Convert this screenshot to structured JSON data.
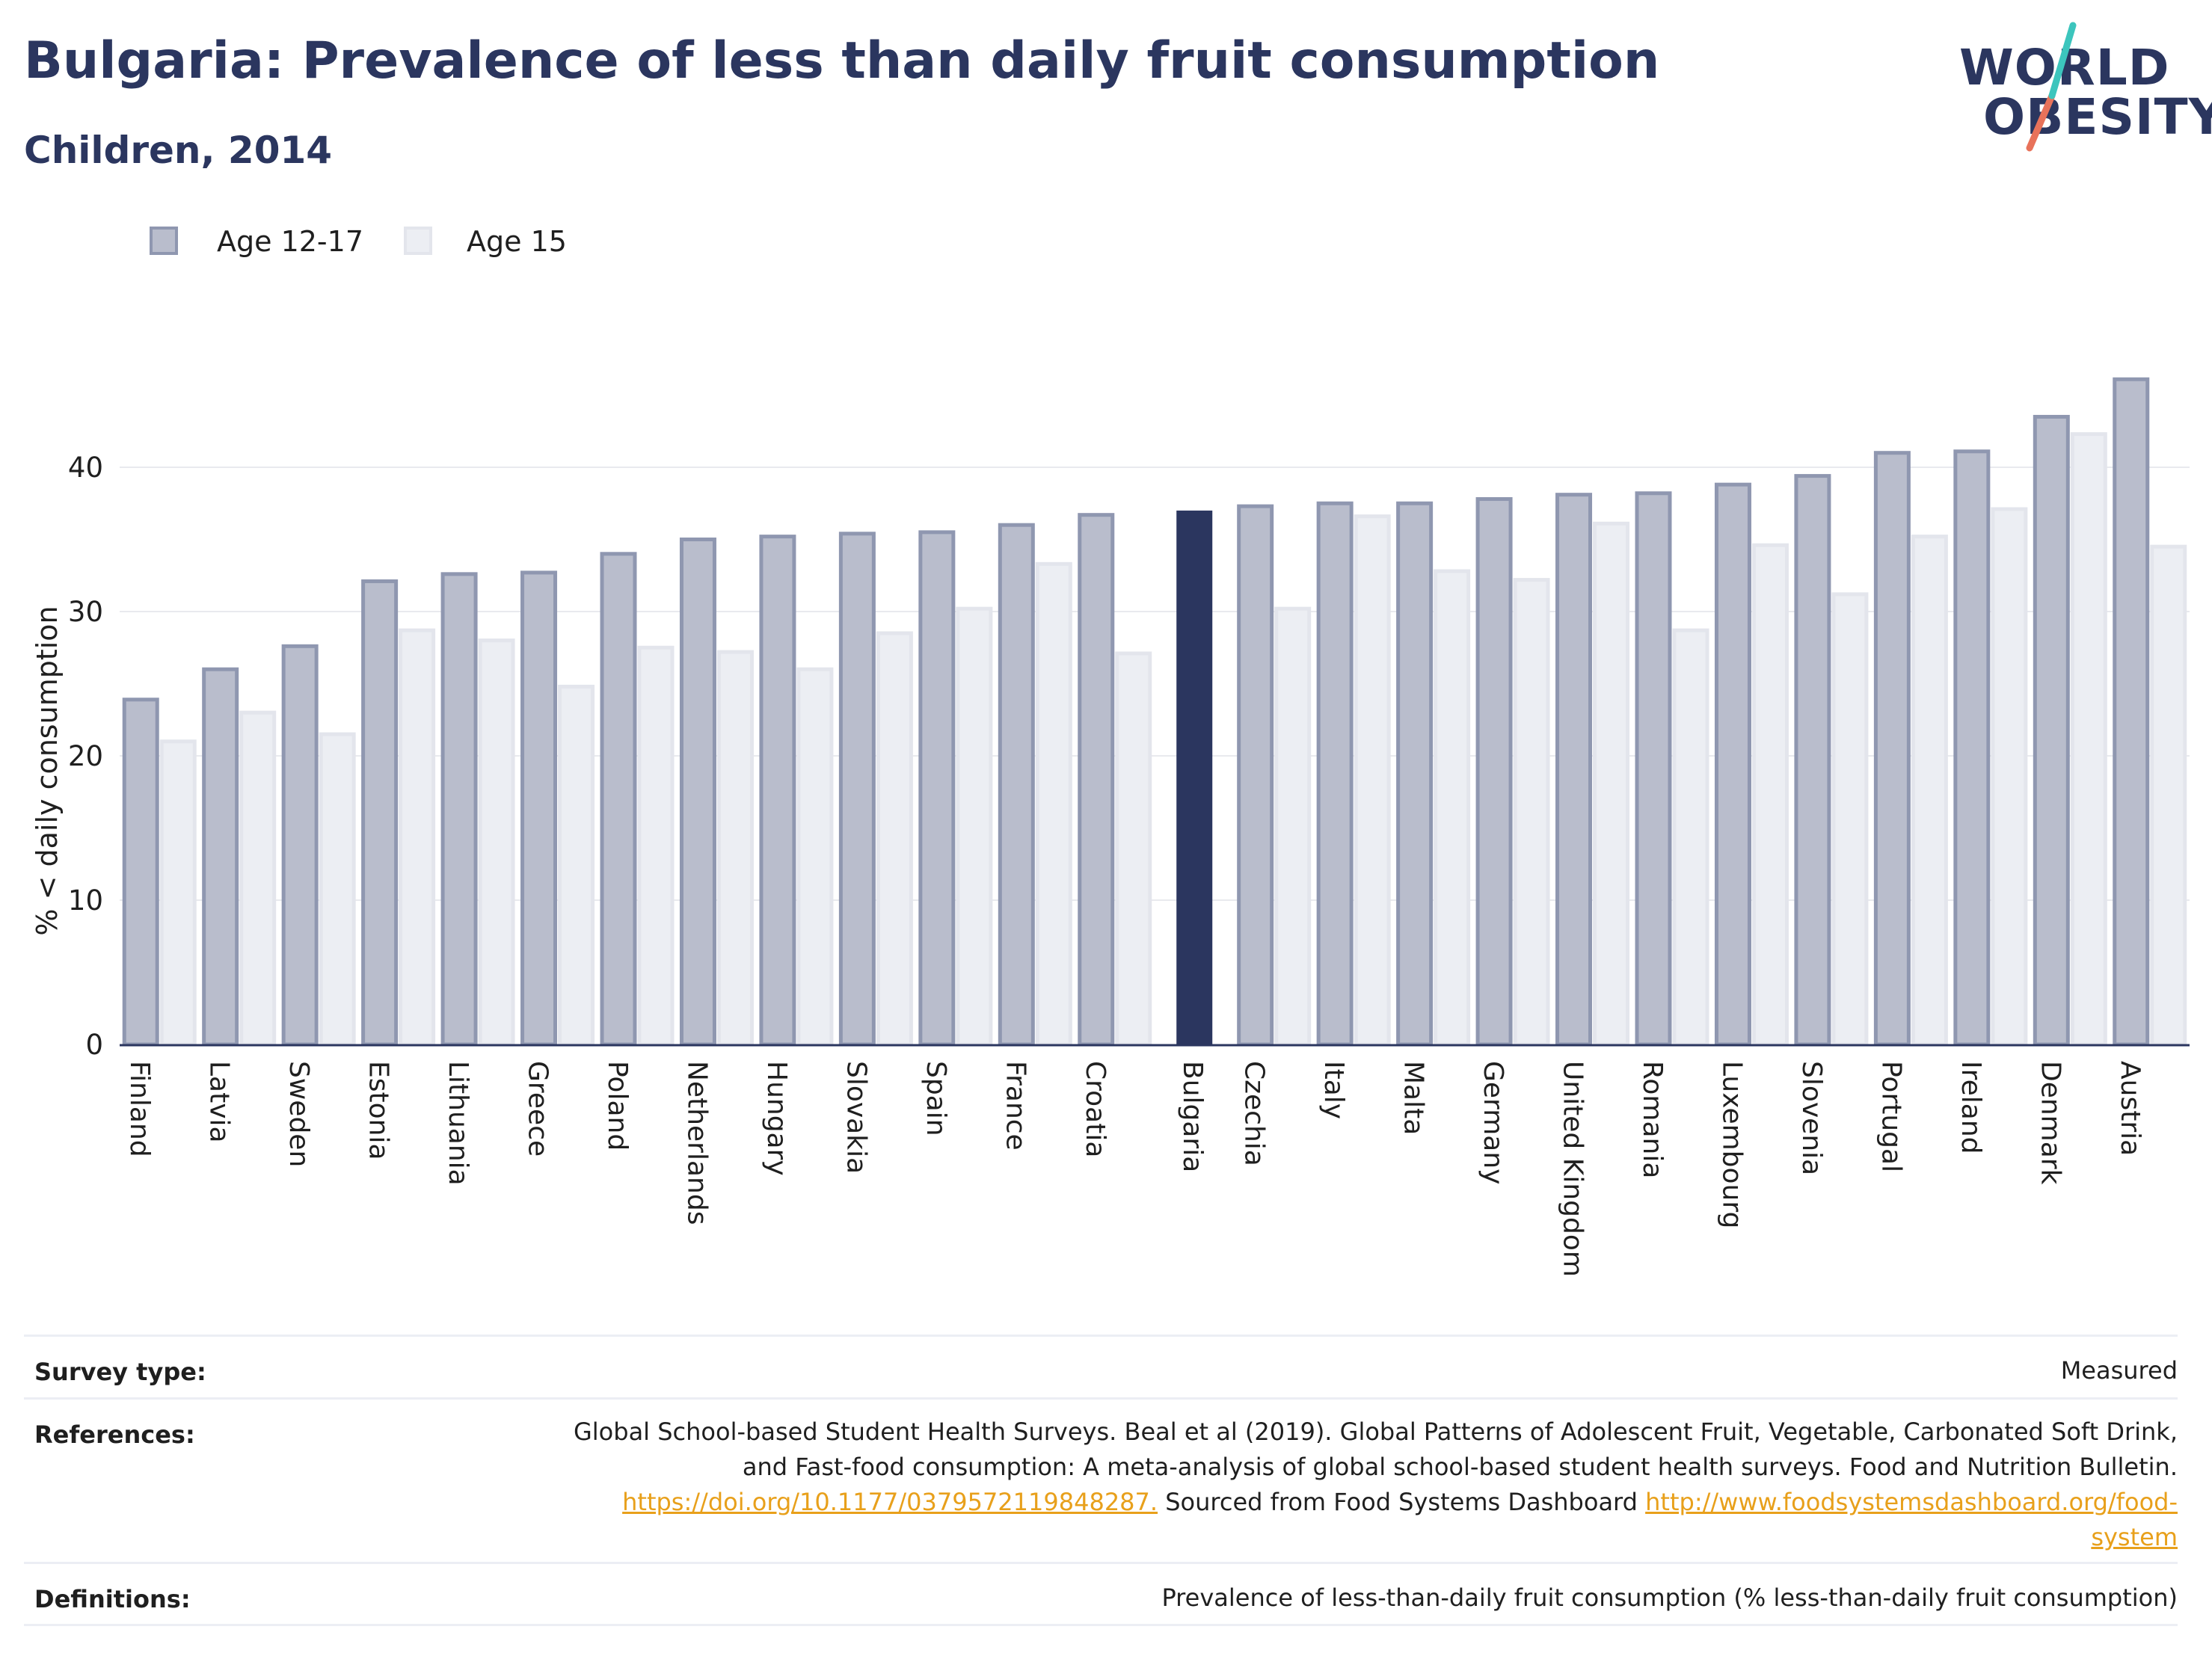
{
  "header": {
    "title": "Bulgaria: Prevalence of less than daily fruit consumption",
    "subtitle": "Children, 2014"
  },
  "logo": {
    "line1": "WORLD",
    "line2": "OBESITY"
  },
  "legend": [
    {
      "label": "Age 12-17"
    },
    {
      "label": "Age 15"
    }
  ],
  "colors": {
    "series_a_fill": "#b9bdcc",
    "series_a_stroke": "#8f97b0",
    "series_b_fill": "#eceef3",
    "series_b_stroke": "#e3e5ec",
    "highlight": "#2b365f",
    "gridline": "#e9eaee",
    "axis": "#2b365f"
  },
  "chart_data": {
    "type": "bar",
    "highlight_category": "Bulgaria",
    "categories": [
      "Finland",
      "Latvia",
      "Sweden",
      "Estonia",
      "Lithuania",
      "Greece",
      "Poland",
      "Netherlands",
      "Hungary",
      "Slovakia",
      "Spain",
      "France",
      "Croatia",
      "Bulgaria",
      "Czechia",
      "Italy",
      "Malta",
      "Germany",
      "United Kingdom",
      "Romania",
      "Luxembourg",
      "Slovenia",
      "Portugal",
      "Ireland",
      "Denmark",
      "Austria"
    ],
    "series": [
      {
        "name": "Age 12-17",
        "values": [
          23.9,
          26.0,
          27.6,
          32.1,
          32.6,
          32.7,
          34.0,
          35.0,
          35.2,
          35.4,
          35.5,
          36.0,
          36.7,
          37.0,
          37.3,
          37.5,
          37.5,
          37.8,
          38.1,
          38.2,
          38.8,
          39.4,
          41.0,
          41.1,
          43.5,
          46.1
        ]
      },
      {
        "name": "Age 15",
        "values": [
          21.0,
          23.0,
          21.5,
          28.7,
          28.0,
          24.8,
          27.5,
          27.2,
          26.0,
          28.5,
          30.2,
          33.3,
          27.1,
          null,
          30.2,
          36.6,
          32.8,
          32.2,
          36.1,
          28.7,
          34.6,
          31.2,
          35.2,
          37.1,
          42.3,
          34.5
        ]
      }
    ],
    "ylabel": "% < daily consumption",
    "ylim": [
      0,
      50
    ],
    "yticks": [
      0,
      10,
      20,
      30,
      40
    ],
    "ytick_labels": [
      "0",
      "10",
      "20",
      "30",
      "40"
    ],
    "grid": true,
    "legend_position": "top-left"
  },
  "footer": {
    "survey_type_label": "Survey type:",
    "survey_type_value": "Measured",
    "references_label": "References:",
    "references_line1": "Global School-based Student Health Surveys. Beal et al (2019). Global Patterns of Adolescent Fruit, Vegetable, Carbonated Soft Drink,",
    "references_line2": "and Fast-food consumption: A meta-analysis of global school-based student health surveys. Food and Nutrition Bulletin.",
    "references_link1": "https://doi.org/10.1177/0379572119848287.",
    "references_mid": " Sourced from Food Systems Dashboard ",
    "references_link2a": "http://www.foodsystemsdashboard.org/food-",
    "references_link2b": "system",
    "definitions_label": "Definitions:",
    "definitions_value": "Prevalence of less-than-daily fruit consumption (% less-than-daily fruit consumption)"
  }
}
